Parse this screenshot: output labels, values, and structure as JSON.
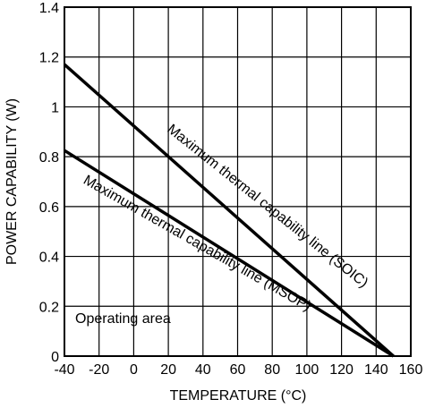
{
  "chart_data": {
    "type": "line",
    "xlabel": "TEMPERATURE (°C)",
    "ylabel": "POWER CAPABILITY (W)",
    "xlim": [
      -40,
      160
    ],
    "ylim": [
      0,
      1.4
    ],
    "x_ticks": [
      -40,
      -20,
      0,
      20,
      40,
      60,
      80,
      100,
      120,
      140,
      160
    ],
    "y_ticks": [
      0,
      0.2,
      0.4,
      0.6,
      0.8,
      1,
      1.2,
      1.4
    ],
    "grid": true,
    "series": [
      {
        "name": "Maximum thermal capability line (SOIC)",
        "x": [
          -40,
          150
        ],
        "y": [
          1.17,
          0
        ],
        "color": "#000000"
      },
      {
        "name": "Maximum thermal capability line (MSOP)",
        "x": [
          -40,
          150
        ],
        "y": [
          0.825,
          0
        ],
        "color": "#000000"
      }
    ],
    "annotations": [
      "Operating area"
    ]
  }
}
